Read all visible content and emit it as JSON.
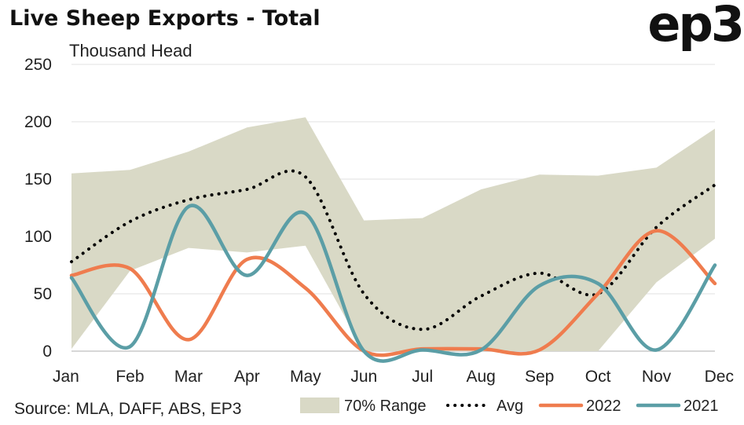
{
  "header": {
    "title": "Live Sheep Exports - Total",
    "logo": "ep3",
    "unit_label": "Thousand Head"
  },
  "source_note": "Source: MLA, DAFF, ABS, EP3",
  "colors": {
    "range": "#d9d9c6",
    "avg": "#000000",
    "s2022": "#ef7c4e",
    "s2021": "#5b9ea6",
    "grid": "#e6e6e6"
  },
  "chart_data": {
    "type": "line",
    "title": "Live Sheep Exports - Total",
    "ylabel": "Thousand Head",
    "xlabel": "",
    "ylim": [
      0,
      250
    ],
    "yticks": [
      0,
      50,
      100,
      150,
      200,
      250
    ],
    "categories": [
      "Jan",
      "Feb",
      "Mar",
      "Apr",
      "May",
      "Jun",
      "Jul",
      "Aug",
      "Sep",
      "Oct",
      "Nov",
      "Dec"
    ],
    "range": {
      "name": "70% Range",
      "upper": [
        155,
        158,
        174,
        195,
        204,
        114,
        116,
        141,
        154,
        153,
        160,
        194
      ],
      "lower": [
        2,
        70,
        90,
        86,
        92,
        0,
        0,
        0,
        0,
        0,
        60,
        98
      ]
    },
    "series": [
      {
        "name": "Avg",
        "style": "dotted",
        "values": [
          78,
          113,
          132,
          141,
          152,
          50,
          19,
          48,
          68,
          50,
          108,
          145
        ]
      },
      {
        "name": "2022",
        "style": "solid",
        "values": [
          66,
          72,
          10,
          80,
          55,
          0,
          2,
          2,
          1,
          50,
          105,
          59
        ]
      },
      {
        "name": "2021",
        "style": "solid",
        "values": [
          64,
          4,
          126,
          66,
          120,
          0,
          1,
          1,
          57,
          59,
          1,
          75
        ]
      }
    ],
    "grid": true,
    "legend": "bottom"
  }
}
